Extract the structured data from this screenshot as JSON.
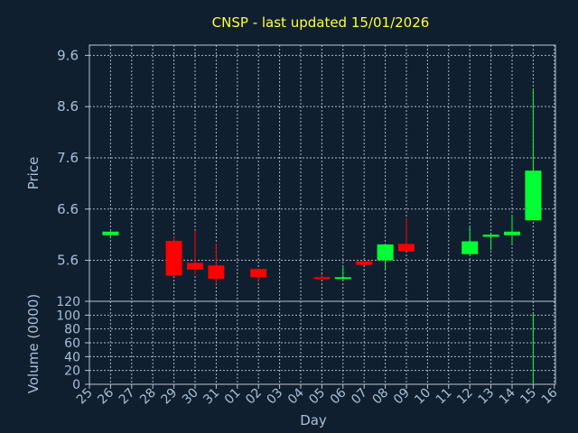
{
  "chart_data": {
    "type": "candlestick",
    "title": "CNSP - last updated 15/01/2026",
    "xlabel": "Day",
    "price_ylabel": "Price",
    "volume_ylabel": "Volume (0000)",
    "colors": {
      "background": "#0f1f30",
      "title": "#ffff33",
      "axis_text": "#a9bfd8",
      "up": "#00ff33",
      "down": "#ff0000"
    },
    "price_axis": {
      "ylim": [
        4.8,
        9.8
      ],
      "ticks": [
        "9.6",
        "8.6",
        "7.6",
        "6.6",
        "5.6"
      ],
      "tick_values": [
        9.6,
        8.6,
        7.6,
        6.6,
        5.6
      ]
    },
    "volume_axis": {
      "ylim": [
        0,
        120
      ],
      "ticks": [
        "120",
        "100",
        "80",
        "60",
        "40",
        "20",
        "0"
      ],
      "tick_values": [
        120,
        100,
        80,
        60,
        40,
        20,
        0
      ]
    },
    "x_ticks": [
      "25",
      "26",
      "27",
      "28",
      "29",
      "30",
      "31",
      "01",
      "02",
      "03",
      "04",
      "05",
      "06",
      "07",
      "08",
      "09",
      "10",
      "11",
      "12",
      "13",
      "14",
      "15",
      "16"
    ],
    "candles": [
      {
        "day": "26",
        "open": 6.09,
        "close": 6.16,
        "high": 6.17,
        "low": 6.03,
        "volume": 0
      },
      {
        "day": "29",
        "open": 5.98,
        "close": 5.3,
        "high": 6.08,
        "low": 5.28,
        "volume": 0
      },
      {
        "day": "30",
        "open": 5.55,
        "close": 5.42,
        "high": 6.18,
        "low": 5.32,
        "volume": 0
      },
      {
        "day": "31",
        "open": 5.5,
        "close": 5.24,
        "high": 5.93,
        "low": 5.13,
        "volume": 0
      },
      {
        "day": "02",
        "open": 5.43,
        "close": 5.27,
        "high": 5.43,
        "low": 5.18,
        "volume": 0
      },
      {
        "day": "05",
        "open": 5.27,
        "close": 5.25,
        "high": 5.33,
        "low": 5.24,
        "volume": 0
      },
      {
        "day": "06",
        "open": 5.25,
        "close": 5.27,
        "high": 5.47,
        "low": 5.2,
        "volume": 0
      },
      {
        "day": "07",
        "open": 5.58,
        "close": 5.51,
        "high": 5.58,
        "low": 5.5,
        "volume": 0
      },
      {
        "day": "08",
        "open": 5.6,
        "close": 5.91,
        "high": 5.91,
        "low": 5.43,
        "volume": 0
      },
      {
        "day": "09",
        "open": 5.92,
        "close": 5.78,
        "high": 6.43,
        "low": 5.78,
        "volume": 0
      },
      {
        "day": "12",
        "open": 5.72,
        "close": 5.97,
        "high": 6.25,
        "low": 5.72,
        "volume": 0
      },
      {
        "day": "13",
        "open": 6.06,
        "close": 6.1,
        "high": 6.1,
        "low": 5.8,
        "volume": 0
      },
      {
        "day": "14",
        "open": 6.09,
        "close": 6.16,
        "high": 6.48,
        "low": 5.93,
        "volume": 0
      },
      {
        "day": "15",
        "open": 6.38,
        "close": 7.35,
        "high": 8.95,
        "low": 6.38,
        "volume": 103
      }
    ]
  }
}
